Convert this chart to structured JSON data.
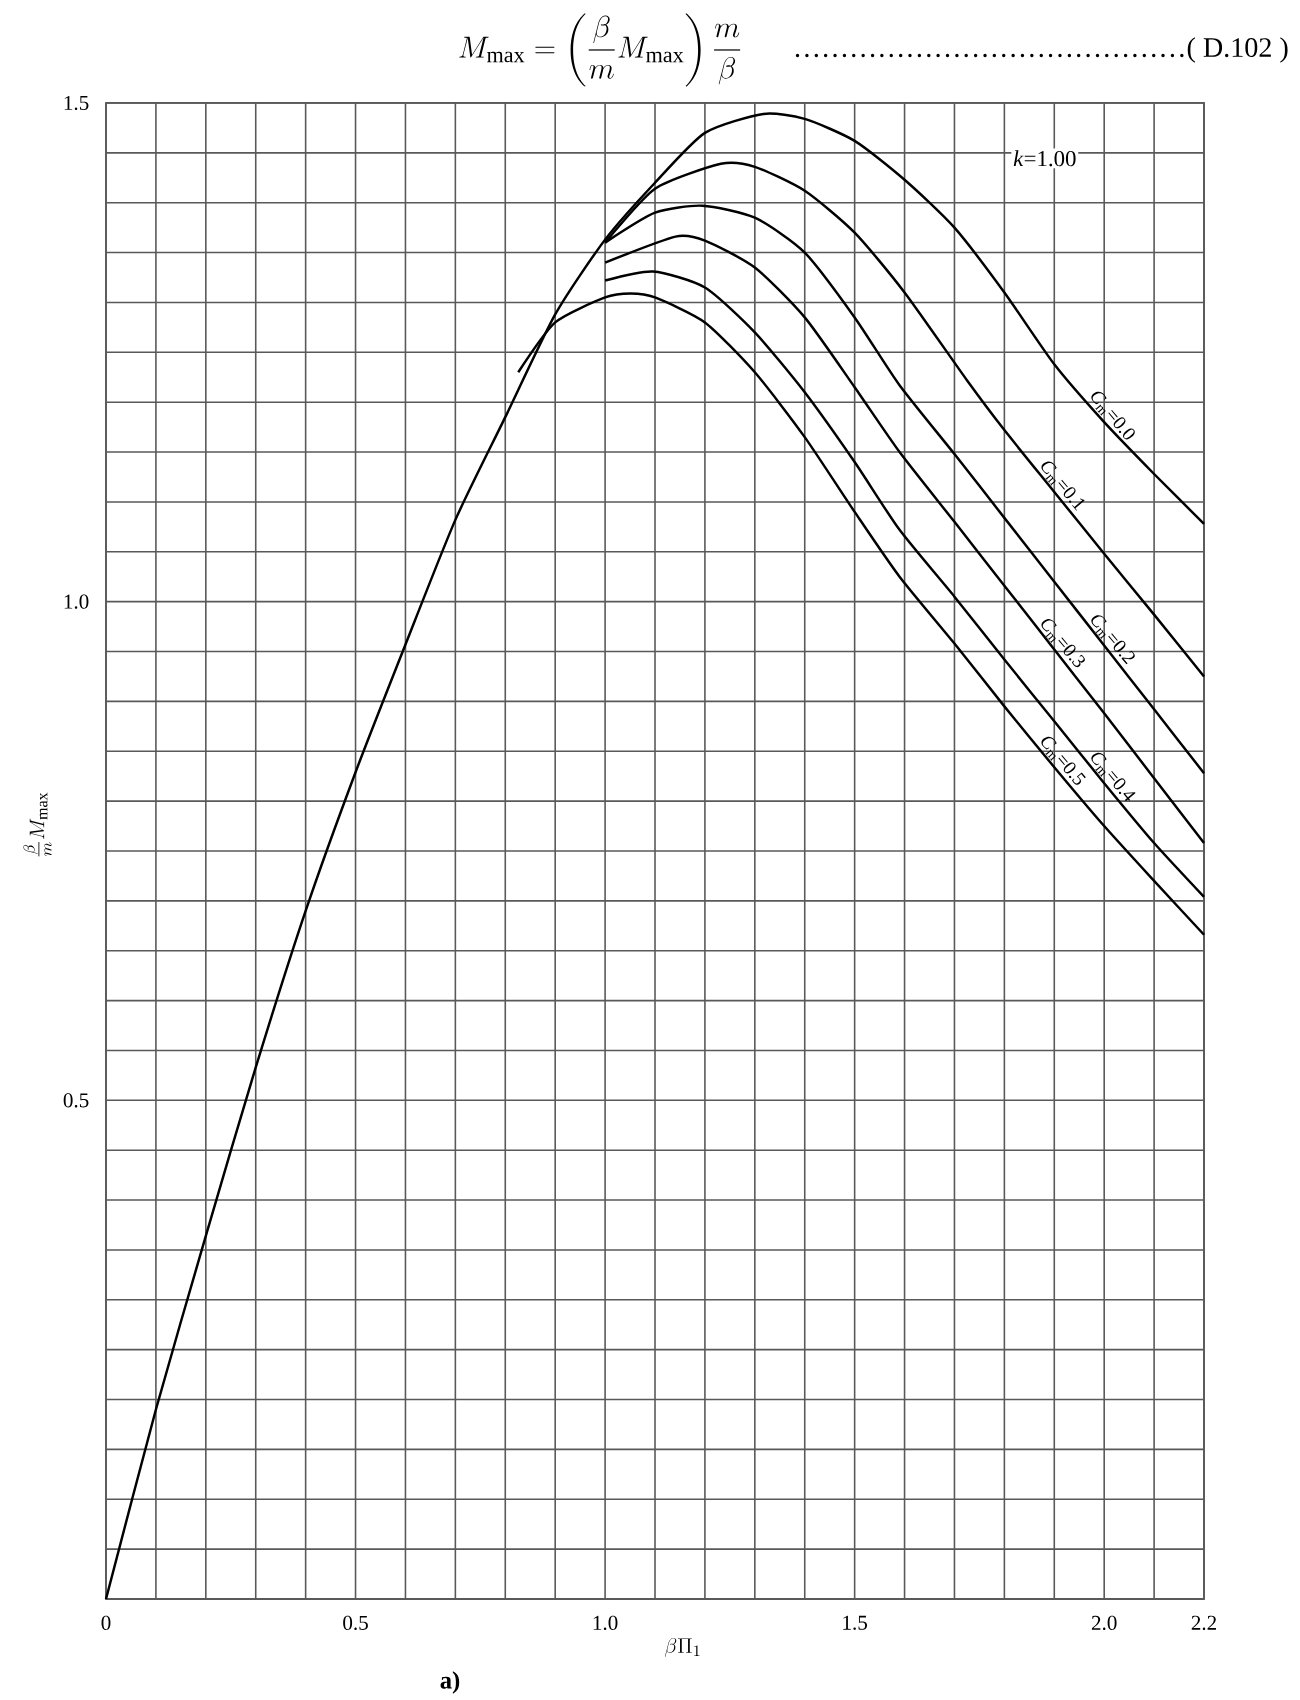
{
  "chart_data": {
    "type": "line",
    "title": "M_{\\max}=\\left(\\dfrac{\\beta}{m}M_{\\max}\\right)\\dfrac{m}{\\beta}",
    "xlabel": "\\beta\\Pi_{1}",
    "ylabel": "\\frac{\\beta}{m}M_{\\max}",
    "annotations": [
      "……………………………………( D.102 )",
      "*k*=1.00",
      "a)"
    ],
    "xlim": [
      0,
      2.2
    ],
    "ylim": [
      0,
      1.5
    ],
    "grid": true,
    "xticks": [
      0,
      {
        "value": 0.1,
        "label": null
      },
      {
        "value": 0.2,
        "label": null
      },
      {
        "value": 0.3,
        "label": null
      },
      {
        "value": 0.4,
        "label": null
      },
      0.5,
      {
        "value": 0.6,
        "label": null
      },
      {
        "value": 0.7,
        "label": null
      },
      {
        "value": 0.8,
        "label": null
      },
      {
        "value": 0.9,
        "label": null
      },
      {
        "value": 1.0,
        "label": "1.0"
      },
      {
        "value": 1.1,
        "label": null
      },
      {
        "value": 1.2,
        "label": null
      },
      {
        "value": 1.3,
        "label": null
      },
      {
        "value": 1.4,
        "label": null
      },
      1.5,
      {
        "value": 1.6,
        "label": null
      },
      {
        "value": 1.7,
        "label": null
      },
      {
        "value": 1.8,
        "label": null
      },
      {
        "value": 1.9,
        "label": null
      },
      {
        "value": 2.0,
        "label": "2.0"
      },
      {
        "value": 2.1,
        "label": null
      },
      2.2
    ],
    "yticks": [
      {
        "value": 0,
        "label": null
      },
      {
        "value": 0.05,
        "label": null
      },
      {
        "value": 0.1,
        "label": null
      },
      {
        "value": 0.15,
        "label": null
      },
      {
        "value": 0.2,
        "label": null
      },
      {
        "value": 0.25,
        "label": null
      },
      {
        "value": 0.3,
        "label": null
      },
      {
        "value": 0.35,
        "label": null
      },
      {
        "value": 0.4,
        "label": null
      },
      {
        "value": 0.45,
        "label": null
      },
      0.5,
      {
        "value": 0.55,
        "label": null
      },
      {
        "value": 0.6,
        "label": null
      },
      {
        "value": 0.65,
        "label": null
      },
      {
        "value": 0.7,
        "label": null
      },
      {
        "value": 0.75,
        "label": null
      },
      {
        "value": 0.8,
        "label": null
      },
      {
        "value": 0.85,
        "label": null
      },
      {
        "value": 0.9,
        "label": null
      },
      {
        "value": 0.95,
        "label": null
      },
      {
        "value": 1.0,
        "label": "1.0"
      },
      {
        "value": 1.05,
        "label": null
      },
      {
        "value": 1.1,
        "label": null
      },
      {
        "value": 1.15,
        "label": null
      },
      {
        "value": 1.2,
        "label": null
      },
      {
        "value": 1.25,
        "label": null
      },
      {
        "value": 1.3,
        "label": null
      },
      {
        "value": 1.35,
        "label": null
      },
      {
        "value": 1.4,
        "label": null
      },
      {
        "value": 1.45,
        "label": null
      },
      1.5
    ],
    "series": [
      {
        "name": "*C*$_{m}$=0.0",
        "color": "#000000",
        "x": [
          0,
          0.1,
          0.2,
          0.3,
          0.4,
          0.5,
          0.6,
          0.7,
          0.8,
          0.9,
          1.0,
          1.1,
          1.2,
          1.317,
          1.4,
          1.5,
          1.6,
          1.7,
          1.8,
          1.9,
          2.0,
          2.1,
          2.2
        ],
        "values": [
          0,
          0.19,
          0.364,
          0.533,
          0.69,
          0.829,
          0.957,
          1.082,
          1.185,
          1.288,
          1.363,
          1.42,
          1.47,
          1.489,
          1.484,
          1.462,
          1.423,
          1.375,
          1.31,
          1.238,
          1.18,
          1.128,
          1.078
        ]
      },
      {
        "name": "*C*$_{m}$=0.1",
        "color": "#000000",
        "x": [
          1.0,
          1.1,
          1.232,
          1.3,
          1.4,
          1.5,
          1.6,
          1.725,
          1.8,
          1.9,
          2.0,
          2.1,
          2.2
        ],
        "values": [
          1.36,
          1.414,
          1.439,
          1.436,
          1.412,
          1.37,
          1.31,
          1.222,
          1.172,
          1.11,
          1.048,
          0.987,
          0.925
        ]
      },
      {
        "name": "*C*$_{m}$=0.2",
        "color": "#000000",
        "x": [
          1.0,
          1.1,
          1.195,
          1.3,
          1.4,
          1.5,
          1.59,
          1.7,
          1.8,
          1.9,
          2.0,
          2.1,
          2.2
        ],
        "values": [
          1.36,
          1.39,
          1.397,
          1.385,
          1.35,
          1.285,
          1.217,
          1.148,
          1.084,
          1.02,
          0.956,
          0.892,
          0.828
        ]
      },
      {
        "name": "*C*$_{m}$=0.3",
        "color": "#000000",
        "x": [
          1.0,
          1.141,
          1.2,
          1.3,
          1.4,
          1.5,
          1.59,
          1.7,
          1.8,
          1.9,
          2.0,
          2.1,
          2.2
        ],
        "values": [
          1.34,
          1.366,
          1.362,
          1.335,
          1.285,
          1.215,
          1.15,
          1.08,
          1.016,
          0.952,
          0.888,
          0.823,
          0.758
        ]
      },
      {
        "name": "*C*$_{m}$=0.4",
        "color": "#000000",
        "x": [
          1.0,
          1.096,
          1.2,
          1.3,
          1.4,
          1.5,
          1.59,
          1.7,
          1.8,
          1.9,
          2.0,
          2.1,
          2.2
        ],
        "values": [
          1.322,
          1.331,
          1.315,
          1.27,
          1.21,
          1.14,
          1.072,
          1.005,
          0.942,
          0.88,
          0.818,
          0.758,
          0.704
        ]
      },
      {
        "name": "*C*$_{m}$=0.5",
        "color": "#000000",
        "x": [
          0.826,
          0.9,
          1.0,
          1.051,
          1.1,
          1.2,
          1.3,
          1.4,
          1.5,
          1.59,
          1.7,
          1.8,
          1.9,
          2.0,
          2.1,
          2.2
        ],
        "values": [
          1.23,
          1.28,
          1.305,
          1.309,
          1.305,
          1.28,
          1.23,
          1.165,
          1.09,
          1.025,
          0.958,
          0.895,
          0.834,
          0.775,
          0.72,
          0.666
        ]
      }
    ]
  }
}
